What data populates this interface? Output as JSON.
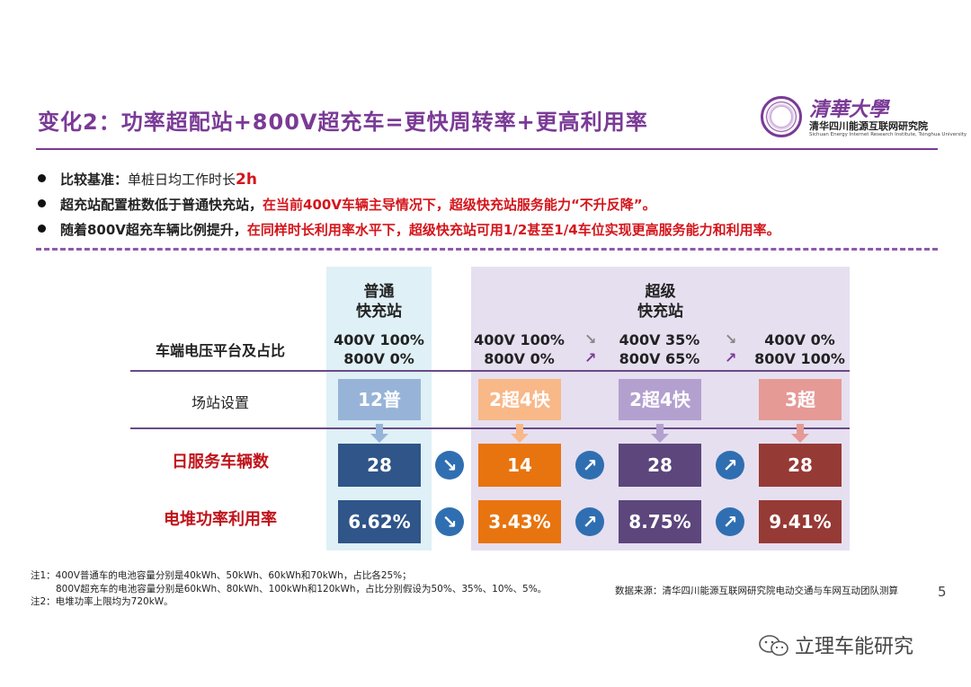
{
  "title": "变化2：功率超配站+800V超充车=更快周转率+更高利用率",
  "logo": {
    "cn_name": "清華大學",
    "institute": "清华四川能源互联网研究院",
    "english": "Sichuan Energy Internet Research Institute, Tsinghua University"
  },
  "bullets": [
    {
      "bold": "比较基准：",
      "normal": "单桩日均工作时长",
      "red": "2h"
    },
    {
      "bold": "超充站配置桩数低于普通快充站，",
      "red": "在当前400V车辆主导情况下，超级快充站服务能力“不升反降”。"
    },
    {
      "bold": "随着800V超充车辆比例提升，",
      "red": "在同样时长利用率水平下，超级快充站可用1/2甚至1/4车位实现更高服务能力和利用率。"
    }
  ],
  "table": {
    "col_normal": {
      "line1": "普通",
      "line2": "快充站"
    },
    "col_super": {
      "line1": "超级",
      "line2": "快充站"
    },
    "row_voltage": "车端电压平台及占比",
    "row_config": "场站设置",
    "row_vehicles": "日服务车辆数",
    "row_util": "电堆功率利用率",
    "columns": [
      {
        "v400": "400V 100%",
        "v800": "800V 0%",
        "config": "12普",
        "vehicles": "28",
        "util": "6.62%",
        "color_cfg": "#97b4d8",
        "color_box": "#2f5589"
      },
      {
        "v400": "400V 100%",
        "v800": "800V 0%",
        "config": "2超4快",
        "vehicles": "14",
        "util": "3.43%",
        "color_cfg": "#f8b888",
        "color_box": "#e8740f"
      },
      {
        "v400": "400V 35%",
        "v800": "800V 65%",
        "config": "2超4快",
        "vehicles": "28",
        "util": "8.75%",
        "color_cfg": "#b3a0cf",
        "color_box": "#5c467c"
      },
      {
        "v400": "400V 0%",
        "v800": "800V 100%",
        "config": "3超",
        "vehicles": "28",
        "util": "9.41%",
        "color_cfg": "#e59a96",
        "color_box": "#963a36"
      }
    ],
    "arrow_down": "↘",
    "arrow_up": "↗"
  },
  "notes": {
    "n1a": "注1：400V普通车的电池容量分别是40kWh、50kWh、60kWh和70kWh，占比各25%；",
    "n1b": "800V超充车的电池容量分别是60kWh、80kWh、100kWh和120kWh，占比分别假设为50%、35%、10%、5%。",
    "n2": "注2：电堆功率上限均为720kW。"
  },
  "source": "数据来源：清华四川能源互联网研究院电动交通与车网互动团队测算",
  "page_number": "5",
  "watermark": "立理车能研究",
  "icons": {
    "seal": "university-seal-icon",
    "wechat": "wechat-icon"
  }
}
